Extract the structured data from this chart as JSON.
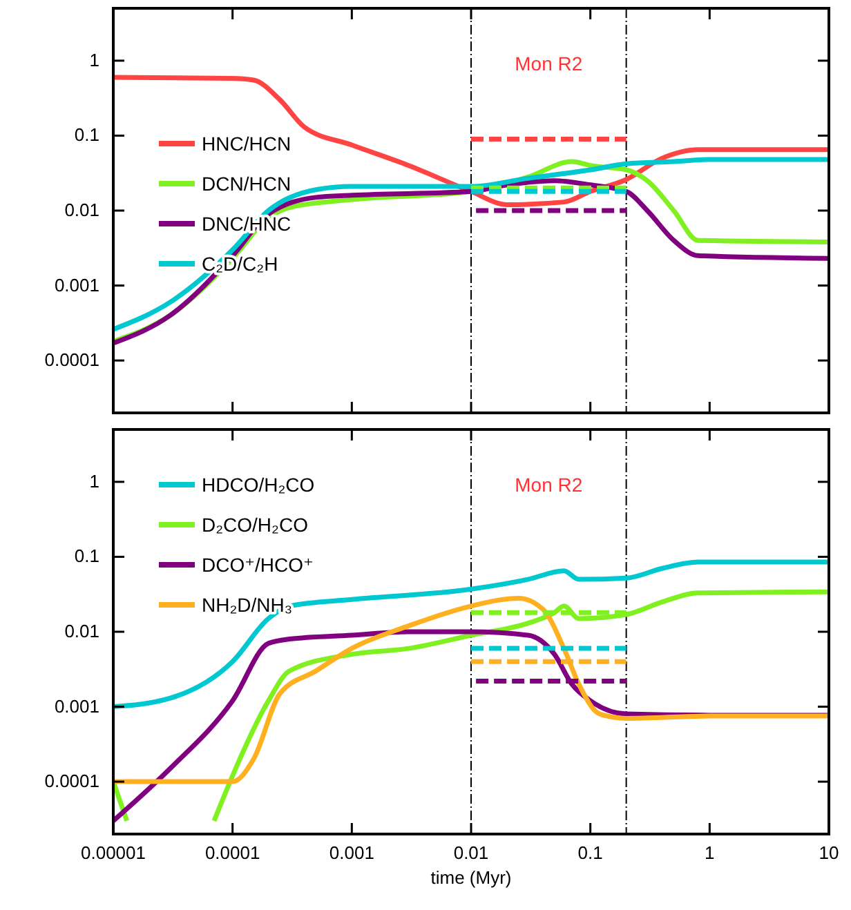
{
  "chart_data": [
    {
      "type": "line",
      "log": "xy",
      "grid": false,
      "legend": "left",
      "tick_labels": "y",
      "xlim": [
        1e-05,
        10
      ],
      "ylim": [
        2e-05,
        5
      ],
      "xticks": [
        {
          "value": 1e-05,
          "label": null
        },
        {
          "value": 0.0001,
          "label": null
        },
        {
          "value": 0.001,
          "label": null
        },
        {
          "value": 0.01,
          "label": null
        },
        {
          "value": 0.1,
          "label": null
        },
        {
          "value": 1,
          "label": null
        },
        {
          "value": 10,
          "label": null
        }
      ],
      "yticks": [
        1,
        0.1,
        0.01,
        0.001,
        {
          "value": 0.0001,
          "label": "0.0001"
        }
      ],
      "ref_lines": [
        {
          "axis": "x",
          "value": 0.01,
          "line_style": "dashed",
          "color": "#000000"
        },
        {
          "axis": "x",
          "value": 0.2,
          "line_style": "dashed",
          "color": "#000000"
        }
      ],
      "annotations": [
        "Mon R2"
      ],
      "series": [
        {
          "name": "HNC/HCN",
          "color": "#ff4444",
          "x": [
            1e-05,
            0.0001,
            0.00015,
            0.00025,
            0.0004,
            0.001,
            0.003,
            0.01,
            0.02,
            0.06,
            0.1,
            0.2,
            0.4,
            0.8,
            10
          ],
          "values": [
            0.6,
            0.58,
            0.55,
            0.3,
            0.13,
            0.075,
            0.04,
            0.018,
            0.012,
            0.013,
            0.018,
            0.026,
            0.05,
            0.065,
            0.065
          ]
        },
        {
          "name": "DCN/HCN",
          "color": "#80f020",
          "x": [
            1e-05,
            3e-05,
            0.0001,
            0.0002,
            0.0003,
            0.001,
            0.01,
            0.03,
            0.07,
            0.1,
            0.2,
            0.3,
            0.5,
            0.8,
            10
          ],
          "values": [
            0.00018,
            0.0004,
            0.0023,
            0.008,
            0.011,
            0.014,
            0.018,
            0.028,
            0.045,
            0.04,
            0.035,
            0.025,
            0.01,
            0.004,
            0.0038
          ]
        },
        {
          "name": "DNC/HNC",
          "color": "#800080",
          "x": [
            1e-05,
            3e-05,
            0.0001,
            0.0002,
            0.0005,
            0.001,
            0.01,
            0.02,
            0.05,
            0.1,
            0.2,
            0.3,
            0.5,
            0.8,
            10
          ],
          "values": [
            0.00017,
            0.0004,
            0.0025,
            0.009,
            0.015,
            0.016,
            0.018,
            0.022,
            0.025,
            0.022,
            0.018,
            0.01,
            0.004,
            0.0025,
            0.0023
          ]
        },
        {
          "name": "C₂D/C₂H",
          "color": "#00c8d0",
          "x": [
            1e-05,
            3e-05,
            0.0001,
            0.0002,
            0.0005,
            0.001,
            0.01,
            0.03,
            0.1,
            0.2,
            0.5,
            1,
            10
          ],
          "values": [
            0.00026,
            0.0006,
            0.003,
            0.01,
            0.019,
            0.021,
            0.021,
            0.027,
            0.035,
            0.042,
            0.045,
            0.048,
            0.048
          ]
        },
        {
          "color": "#ff4444",
          "line_style": "dashed",
          "x": [
            0.01,
            0.2
          ],
          "values": [
            0.09,
            0.09
          ]
        },
        {
          "color": "#80f020",
          "line_style": "dashed",
          "x": [
            0.01,
            0.2
          ],
          "values": [
            0.02,
            0.02
          ]
        },
        {
          "color": "#00c8d0",
          "line_style": "dashed",
          "x": [
            0.01,
            0.2
          ],
          "values": [
            0.018,
            0.018
          ]
        },
        {
          "color": "#800080",
          "line_style": "dashed",
          "x": [
            0.011,
            0.2
          ],
          "values": [
            0.01,
            0.01
          ]
        }
      ]
    },
    {
      "type": "line",
      "log": "xy",
      "grid": false,
      "legend": "top left",
      "xlim": [
        1e-05,
        10
      ],
      "ylim": [
        2e-05,
        5
      ],
      "xlabel": "time (Myr)",
      "xticks": [
        {
          "value": 1e-05,
          "label": "0.00001"
        },
        {
          "value": 0.0001,
          "label": "0.0001"
        },
        0.001,
        0.01,
        0.1,
        1,
        10
      ],
      "yticks": [
        1,
        0.1,
        0.01,
        0.001,
        {
          "value": 0.0001,
          "label": "0.0001"
        }
      ],
      "ref_lines": [
        {
          "axis": "x",
          "value": 0.01,
          "line_style": "dashed",
          "color": "#000000"
        },
        {
          "axis": "x",
          "value": 0.2,
          "line_style": "dashed",
          "color": "#000000"
        }
      ],
      "annotations": [
        "Mon R2"
      ],
      "series": [
        {
          "name": "HDCO/H₂CO",
          "color": "#00c8d0",
          "x": [
            1e-05,
            3e-05,
            0.0001,
            0.0002,
            0.0003,
            0.001,
            0.01,
            0.03,
            0.06,
            0.08,
            0.2,
            0.4,
            0.8,
            10
          ],
          "values": [
            0.001,
            0.0013,
            0.004,
            0.015,
            0.022,
            0.027,
            0.037,
            0.05,
            0.065,
            0.05,
            0.052,
            0.07,
            0.085,
            0.085
          ]
        },
        {
          "name": "D₂CO/H₂CO",
          "color": "#80f020",
          "x": [
            1e-05,
            1.3e-05,
            4e-05,
            7e-05,
            0.0001,
            0.0002,
            0.0003,
            0.001,
            0.003,
            0.01,
            0.03,
            0.05,
            0.06,
            0.08,
            0.2,
            0.4,
            0.8,
            10
          ],
          "values": [
            0.0001,
            3e-05,
            null,
            3e-05,
            0.00012,
            0.0012,
            0.003,
            0.005,
            0.006,
            0.009,
            0.013,
            0.018,
            0.022,
            0.015,
            0.017,
            0.025,
            0.033,
            0.034
          ]
        },
        {
          "name": "DCO⁺/HCO⁺",
          "color": "#800080",
          "x": [
            1e-05,
            3e-05,
            0.0001,
            0.0002,
            0.0003,
            0.001,
            0.003,
            0.01,
            0.03,
            0.05,
            0.07,
            0.1,
            0.2,
            1,
            10
          ],
          "values": [
            3e-05,
            0.00015,
            0.0012,
            0.007,
            0.008,
            0.009,
            0.01,
            0.01,
            0.009,
            0.005,
            0.002,
            0.0012,
            0.0008,
            0.00077,
            0.00077
          ]
        },
        {
          "name": "NH₂D/NH₃",
          "color": "#ffb020",
          "x": [
            1e-05,
            0.0001,
            0.00015,
            0.00025,
            0.0005,
            0.001,
            0.003,
            0.01,
            0.025,
            0.04,
            0.06,
            0.08,
            0.12,
            0.2,
            1,
            10
          ],
          "values": [
            0.0001,
            0.0001,
            0.0002,
            0.0015,
            0.003,
            0.006,
            0.012,
            0.022,
            0.028,
            0.02,
            0.006,
            0.002,
            0.0008,
            0.0007,
            0.00075,
            0.00075
          ]
        },
        {
          "color": "#80f020",
          "line_style": "dashed",
          "x": [
            0.01,
            0.2
          ],
          "values": [
            0.018,
            0.018
          ]
        },
        {
          "color": "#00c8d0",
          "line_style": "dashed",
          "x": [
            0.01,
            0.2
          ],
          "values": [
            0.006,
            0.006
          ]
        },
        {
          "color": "#ffb020",
          "line_style": "dashed",
          "x": [
            0.01,
            0.2
          ],
          "values": [
            0.004,
            0.004
          ]
        },
        {
          "color": "#800080",
          "line_style": "dashed",
          "x": [
            0.011,
            0.2
          ],
          "values": [
            0.0022,
            0.0022
          ]
        }
      ]
    }
  ]
}
